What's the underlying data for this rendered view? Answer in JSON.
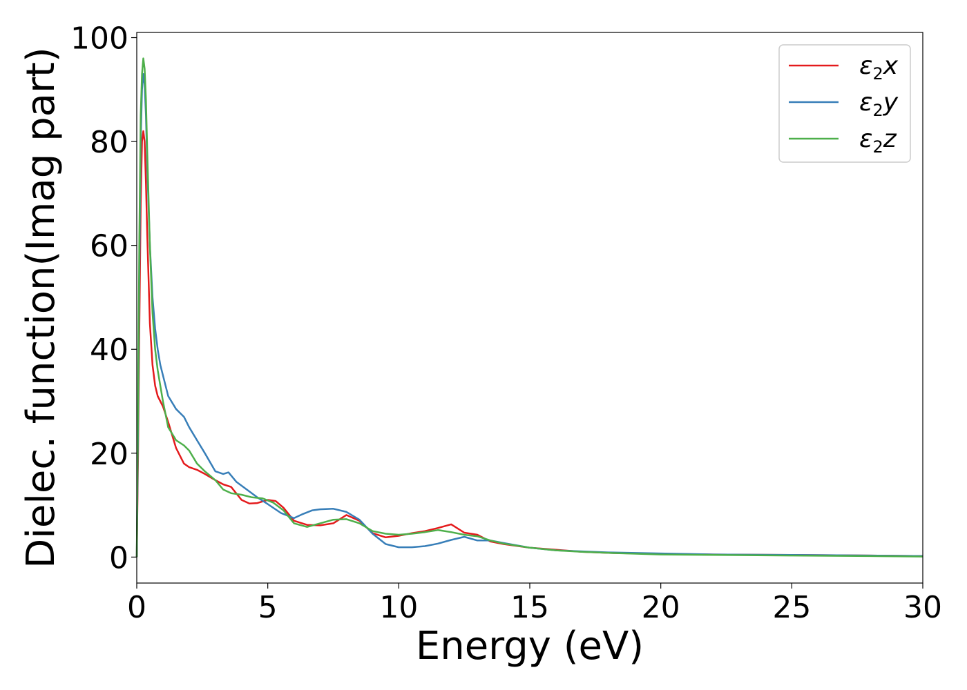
{
  "chart_data": {
    "type": "line",
    "xlabel": "Energy (eV)",
    "ylabel": "Dielec. function(Imag part)",
    "xlim": [
      0,
      30
    ],
    "ylim": [
      -5,
      101
    ],
    "xticks": [
      0,
      5,
      10,
      15,
      20,
      25,
      30
    ],
    "yticks": [
      0,
      20,
      40,
      60,
      80,
      100
    ],
    "grid": false,
    "legend_position": "top-right",
    "series": [
      {
        "name": "ε2x",
        "symbol": "ε",
        "sub": "2",
        "axis": "x",
        "color": "#e41a1c",
        "x": [
          0,
          0.05,
          0.1,
          0.15,
          0.2,
          0.25,
          0.3,
          0.35,
          0.4,
          0.5,
          0.6,
          0.7,
          0.8,
          0.9,
          1.0,
          1.2,
          1.5,
          1.8,
          2.0,
          2.3,
          2.6,
          3.0,
          3.3,
          3.6,
          4.0,
          4.3,
          4.6,
          5.0,
          5.3,
          5.6,
          6.0,
          6.5,
          7.0,
          7.5,
          8.0,
          8.5,
          9.0,
          9.5,
          10.0,
          10.5,
          11.0,
          11.5,
          12.0,
          12.5,
          13.0,
          13.5,
          14.0,
          15.0,
          16.0,
          17.0,
          18.0,
          20.0,
          22.0,
          25.0,
          28.0,
          30.0
        ],
        "values": [
          0,
          20,
          45,
          68,
          80,
          82,
          80,
          72,
          62,
          45,
          37,
          33,
          31,
          30,
          29,
          26,
          21,
          18,
          17.3,
          16.8,
          16,
          14.8,
          14,
          13.5,
          11,
          10.3,
          10.4,
          11,
          10.8,
          9.5,
          7,
          6.2,
          6.1,
          6.5,
          8.1,
          7,
          4.6,
          3.8,
          4.1,
          4.6,
          5.0,
          5.6,
          6.3,
          4.7,
          4.3,
          3.0,
          2.5,
          1.8,
          1.4,
          1.0,
          0.8,
          0.6,
          0.5,
          0.4,
          0.3,
          0.2
        ]
      },
      {
        "name": "ε2y",
        "symbol": "ε",
        "sub": "2",
        "axis": "y",
        "color": "#377eb8",
        "x": [
          0,
          0.05,
          0.1,
          0.15,
          0.2,
          0.25,
          0.3,
          0.35,
          0.4,
          0.5,
          0.6,
          0.7,
          0.8,
          0.9,
          1.0,
          1.2,
          1.5,
          1.8,
          2.0,
          2.3,
          2.6,
          3.0,
          3.3,
          3.5,
          3.8,
          4.2,
          4.6,
          5.0,
          5.5,
          6.0,
          6.3,
          6.7,
          7.0,
          7.5,
          8.0,
          8.5,
          9.0,
          9.5,
          10.0,
          10.5,
          11.0,
          11.5,
          12.0,
          12.5,
          13.0,
          13.5,
          14.0,
          15.0,
          16.0,
          17.0,
          18.0,
          20.0,
          22.0,
          25.0,
          28.0,
          30.0
        ],
        "values": [
          0,
          25,
          55,
          80,
          90,
          93,
          91,
          85,
          75,
          60,
          50,
          44,
          40,
          37,
          35,
          31,
          28.5,
          27,
          25,
          22.5,
          20,
          16.5,
          16,
          16.3,
          14.5,
          13,
          11.5,
          10.2,
          8.5,
          7.5,
          8.2,
          9,
          9.2,
          9.3,
          8.7,
          7.2,
          4.5,
          2.5,
          1.9,
          1.9,
          2.1,
          2.6,
          3.3,
          3.9,
          3.2,
          3.2,
          2.7,
          1.8,
          1.3,
          1.1,
          0.9,
          0.7,
          0.5,
          0.4,
          0.3,
          0.2
        ]
      },
      {
        "name": "ε2z",
        "symbol": "ε",
        "sub": "2",
        "axis": "z",
        "color": "#4daf4a",
        "x": [
          0,
          0.05,
          0.1,
          0.15,
          0.2,
          0.25,
          0.3,
          0.35,
          0.4,
          0.5,
          0.6,
          0.7,
          0.8,
          0.9,
          1.0,
          1.2,
          1.5,
          1.8,
          2.0,
          2.3,
          2.6,
          3.0,
          3.3,
          3.6,
          4.0,
          4.4,
          4.8,
          5.2,
          5.6,
          6.0,
          6.5,
          7.0,
          7.5,
          8.0,
          8.5,
          9.0,
          9.5,
          10.0,
          10.5,
          11.0,
          11.5,
          12.0,
          12.5,
          13.0,
          13.5,
          14.0,
          15.0,
          16.0,
          17.0,
          18.0,
          20.0,
          22.0,
          25.0,
          28.0,
          30.0
        ],
        "values": [
          0,
          30,
          62,
          85,
          93,
          96,
          94,
          88,
          78,
          60,
          47,
          40,
          36,
          33,
          30,
          25,
          22.5,
          21.5,
          20.5,
          18,
          16.5,
          14.8,
          13,
          12.3,
          12,
          11.5,
          11.3,
          10.5,
          9,
          6.5,
          5.8,
          6.5,
          7.2,
          7.3,
          6.5,
          5,
          4.5,
          4.3,
          4.5,
          4.8,
          5.2,
          4.8,
          4.3,
          4.0,
          3.2,
          2.6,
          1.8,
          1.3,
          1.0,
          0.8,
          0.5,
          0.4,
          0.3,
          0.2,
          0.1
        ]
      }
    ]
  }
}
